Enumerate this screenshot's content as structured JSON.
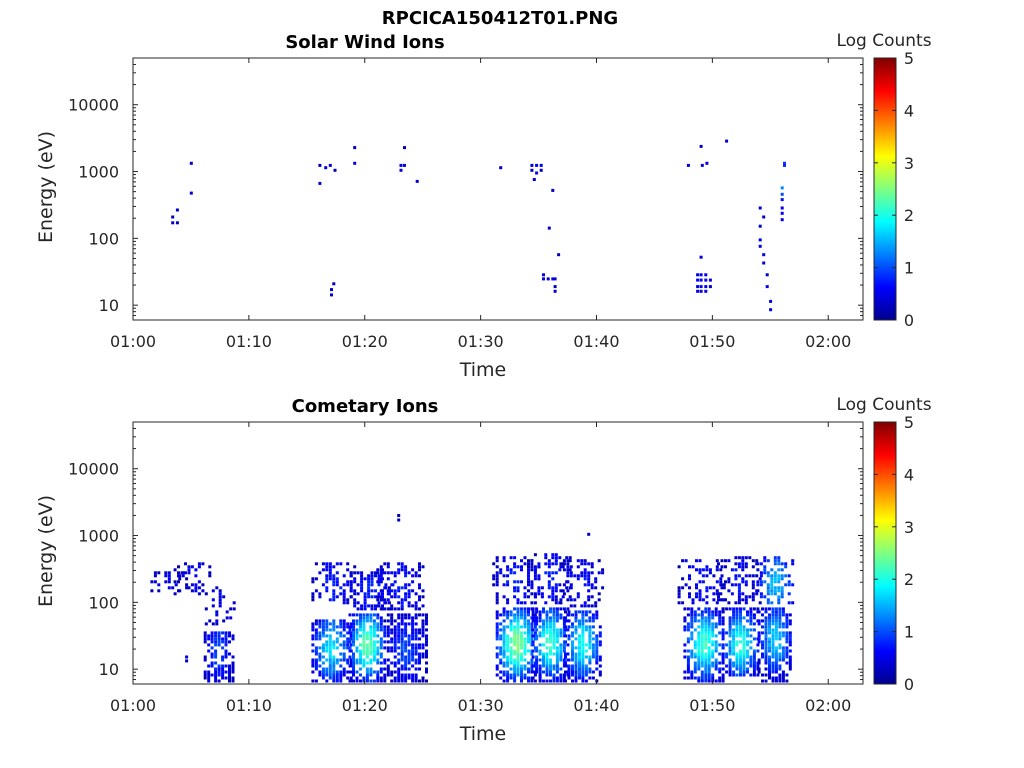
{
  "figure_title": "RPCICA150412T01.PNG",
  "chart_data": [
    {
      "type": "heatmap",
      "title": "Solar Wind Ions",
      "xlabel": "Time",
      "ylabel": "Energy (eV)",
      "xlim": [
        "01:00",
        "02:03"
      ],
      "ylim": [
        6,
        50000
      ],
      "y_scale": "log",
      "x_ticks": [
        "01:00",
        "01:10",
        "01:20",
        "01:30",
        "01:40",
        "01:50",
        "02:00"
      ],
      "y_ticks": [
        {
          "value": 10,
          "label": "10"
        },
        {
          "value": 100,
          "label": "100"
        },
        {
          "value": 1000,
          "label": "1000"
        },
        {
          "value": 10000,
          "label": "10000"
        }
      ],
      "colorbar": {
        "label": "Log Counts",
        "range": [
          0,
          5
        ],
        "ticks": [
          "0",
          "1",
          "2",
          "3",
          "4",
          "5"
        ]
      },
      "cells": [
        [
          "01:03.3",
          180,
          0.4
        ],
        [
          "01:03.3",
          220,
          0.3
        ],
        [
          "01:03.7",
          280,
          0.4
        ],
        [
          "01:03.7",
          180,
          0.3
        ],
        [
          "01:04.9",
          1400,
          0.3
        ],
        [
          "01:04.9",
          500,
          0.4
        ],
        [
          "01:16.0",
          1300,
          0.3
        ],
        [
          "01:16.0",
          700,
          0.4
        ],
        [
          "01:16.5",
          1200,
          0.5
        ],
        [
          "01:16.9",
          1300,
          0.4
        ],
        [
          "01:17.3",
          1100,
          0.3
        ],
        [
          "01:19.0",
          1400,
          0.4
        ],
        [
          "01:19.0",
          2400,
          0.3
        ],
        [
          "01:17.0",
          15,
          0.4
        ],
        [
          "01:17.0",
          18,
          0.3
        ],
        [
          "01:17.2",
          22,
          0.3
        ],
        [
          "01:23.0",
          1300,
          0.6
        ],
        [
          "01:23.0",
          1100,
          0.5
        ],
        [
          "01:23.3",
          1300,
          0.4
        ],
        [
          "01:23.3",
          2400,
          0.3
        ],
        [
          "01:24.4",
          750,
          0.4
        ],
        [
          "01:31.6",
          1200,
          0.3
        ],
        [
          "01:34.3",
          1300,
          0.5
        ],
        [
          "01:34.3",
          1100,
          0.4
        ],
        [
          "01:34.7",
          1300,
          0.6
        ],
        [
          "01:34.7",
          1000,
          0.5
        ],
        [
          "01:34.5",
          800,
          0.4
        ],
        [
          "01:35.1",
          1300,
          0.5
        ],
        [
          "01:35.1",
          1100,
          0.4
        ],
        [
          "01:35.8",
          150,
          0.3
        ],
        [
          "01:36.1",
          550,
          0.3
        ],
        [
          "01:36.6",
          60,
          0.3
        ],
        [
          "01:35.3",
          30,
          0.5
        ],
        [
          "01:35.3",
          26,
          0.4
        ],
        [
          "01:35.7",
          26,
          0.4
        ],
        [
          "01:36.1",
          26,
          0.5
        ],
        [
          "01:36.3",
          26,
          0.4
        ],
        [
          "01:36.3",
          20,
          0.3
        ],
        [
          "01:36.3",
          17,
          0.4
        ],
        [
          "01:47.8",
          1300,
          0.4
        ],
        [
          "01:48.9",
          2500,
          0.3
        ],
        [
          "01:49.0",
          1300,
          0.5
        ],
        [
          "01:49.4",
          1400,
          0.4
        ],
        [
          "01:51.1",
          3000,
          0.3
        ],
        [
          "01:48.6",
          30,
          0.5
        ],
        [
          "01:48.6",
          25,
          0.6
        ],
        [
          "01:48.6",
          20,
          0.5
        ],
        [
          "01:48.6",
          17,
          0.5
        ],
        [
          "01:48.9",
          55,
          0.4
        ],
        [
          "01:48.9",
          30,
          0.5
        ],
        [
          "01:48.9",
          25,
          0.6
        ],
        [
          "01:48.9",
          20,
          0.5
        ],
        [
          "01:48.9",
          17,
          0.4
        ],
        [
          "01:49.3",
          30,
          0.5
        ],
        [
          "01:49.3",
          25,
          0.6
        ],
        [
          "01:49.3",
          20,
          0.5
        ],
        [
          "01:49.3",
          17,
          0.5
        ],
        [
          "01:49.7",
          25,
          0.5
        ],
        [
          "01:49.7",
          20,
          0.4
        ],
        [
          "01:54.0",
          300,
          0.4
        ],
        [
          "01:54.0",
          160,
          0.3
        ],
        [
          "01:54.0",
          100,
          0.5
        ],
        [
          "01:54.0",
          80,
          0.4
        ],
        [
          "01:54.3",
          60,
          0.5
        ],
        [
          "01:54.3",
          45,
          0.4
        ],
        [
          "01:54.6",
          30,
          0.3
        ],
        [
          "01:54.6",
          20,
          0.5
        ],
        [
          "01:54.9",
          12,
          0.4
        ],
        [
          "01:54.9",
          9,
          0.5
        ],
        [
          "01:54.3",
          220,
          0.3
        ],
        [
          "01:55.9",
          600,
          1.3
        ],
        [
          "01:55.9",
          480,
          1.0
        ],
        [
          "01:55.9",
          400,
          0.7
        ],
        [
          "01:55.9",
          300,
          0.5
        ],
        [
          "01:55.9",
          250,
          0.6
        ],
        [
          "01:55.9",
          200,
          0.5
        ],
        [
          "01:56.1",
          1400,
          0.9
        ],
        [
          "01:56.1",
          1300,
          0.8
        ]
      ]
    },
    {
      "type": "heatmap",
      "title": "Cometary Ions",
      "xlabel": "Time",
      "ylabel": "Energy (eV)",
      "xlim": [
        "01:00",
        "02:03"
      ],
      "ylim": [
        6,
        50000
      ],
      "y_scale": "log",
      "x_ticks": [
        "01:00",
        "01:10",
        "01:20",
        "01:30",
        "01:40",
        "01:50",
        "02:00"
      ],
      "y_ticks": [
        {
          "value": 10,
          "label": "10"
        },
        {
          "value": 100,
          "label": "100"
        },
        {
          "value": 1000,
          "label": "1000"
        },
        {
          "value": 10000,
          "label": "10000"
        }
      ],
      "colorbar": {
        "label": "Log Counts",
        "range": [
          0,
          5
        ],
        "ticks": [
          "0",
          "1",
          "2",
          "3",
          "4",
          "5"
        ]
      },
      "bursts": [
        {
          "time": "01:03.0",
          "e_low": 150,
          "e_high": 300,
          "peak": 0.4,
          "peak_e": 200,
          "width": 1.5,
          "density": 0.35
        },
        {
          "time": "01:05.0",
          "e_low": 130,
          "e_high": 400,
          "peak": 0.4,
          "peak_e": 250,
          "width": 1.5,
          "density": 0.3
        },
        {
          "time": "01:07.3",
          "e_low": 7,
          "e_high": 40,
          "peak": 0.8,
          "peak_e": 20,
          "width": 1.2,
          "density": 0.75
        },
        {
          "time": "01:07.4",
          "e_low": 50,
          "e_high": 200,
          "peak": 0.4,
          "peak_e": 100,
          "width": 1.2,
          "density": 0.35
        },
        {
          "time": "01:17.0",
          "e_low": 7,
          "e_high": 60,
          "peak": 1.6,
          "peak_e": 22,
          "width": 1.6,
          "density": 0.85
        },
        {
          "time": "01:17.2",
          "e_low": 100,
          "e_high": 400,
          "peak": 0.6,
          "peak_e": 200,
          "width": 1.8,
          "density": 0.45
        },
        {
          "time": "01:20.1",
          "e_low": 7,
          "e_high": 70,
          "peak": 2.2,
          "peak_e": 24,
          "width": 1.5,
          "density": 0.9
        },
        {
          "time": "01:20.4",
          "e_low": 80,
          "e_high": 350,
          "peak": 0.6,
          "peak_e": 150,
          "width": 2.0,
          "density": 0.5
        },
        {
          "time": "01:23.4",
          "e_low": 7,
          "e_high": 70,
          "peak": 0.8,
          "peak_e": 20,
          "width": 1.8,
          "density": 0.85
        },
        {
          "time": "01:23.0",
          "e_low": 80,
          "e_high": 400,
          "peak": 0.6,
          "peak_e": 180,
          "width": 2.0,
          "density": 0.55
        },
        {
          "time": "01:33.0",
          "e_low": 7,
          "e_high": 90,
          "peak": 2.4,
          "peak_e": 25,
          "width": 1.7,
          "density": 0.9
        },
        {
          "time": "01:33.0",
          "e_low": 100,
          "e_high": 500,
          "peak": 0.6,
          "peak_e": 220,
          "width": 2.0,
          "density": 0.5
        },
        {
          "time": "01:35.9",
          "e_low": 7,
          "e_high": 90,
          "peak": 2.0,
          "peak_e": 26,
          "width": 1.5,
          "density": 0.9
        },
        {
          "time": "01:35.8",
          "e_low": 100,
          "e_high": 600,
          "peak": 0.6,
          "peak_e": 250,
          "width": 1.8,
          "density": 0.5
        },
        {
          "time": "01:38.7",
          "e_low": 7,
          "e_high": 80,
          "peak": 1.8,
          "peak_e": 25,
          "width": 1.5,
          "density": 0.9
        },
        {
          "time": "01:38.6",
          "e_low": 90,
          "e_high": 450,
          "peak": 0.5,
          "peak_e": 200,
          "width": 1.8,
          "density": 0.45
        },
        {
          "time": "01:49.2",
          "e_low": 7,
          "e_high": 90,
          "peak": 2.0,
          "peak_e": 25,
          "width": 1.7,
          "density": 0.9
        },
        {
          "time": "01:49.0",
          "e_low": 100,
          "e_high": 450,
          "peak": 0.5,
          "peak_e": 200,
          "width": 2.0,
          "density": 0.45
        },
        {
          "time": "01:52.3",
          "e_low": 8,
          "e_high": 90,
          "peak": 1.9,
          "peak_e": 25,
          "width": 1.5,
          "density": 0.9
        },
        {
          "time": "01:52.2",
          "e_low": 100,
          "e_high": 500,
          "peak": 0.5,
          "peak_e": 200,
          "width": 1.8,
          "density": 0.45
        },
        {
          "time": "01:55.3",
          "e_low": 7,
          "e_high": 90,
          "peak": 1.5,
          "peak_e": 30,
          "width": 1.4,
          "density": 0.9
        },
        {
          "time": "01:55.3",
          "e_low": 100,
          "e_high": 500,
          "peak": 1.4,
          "peak_e": 200,
          "width": 1.5,
          "density": 0.6
        }
      ],
      "cells": [
        [
          "01:04.5",
          16,
          0.4
        ],
        [
          "01:04.5",
          14,
          0.3
        ],
        [
          "01:22.8",
          2100,
          0.3
        ],
        [
          "01:22.8",
          1800,
          0.3
        ],
        [
          "01:39.2",
          1100,
          0.3
        ]
      ]
    }
  ]
}
